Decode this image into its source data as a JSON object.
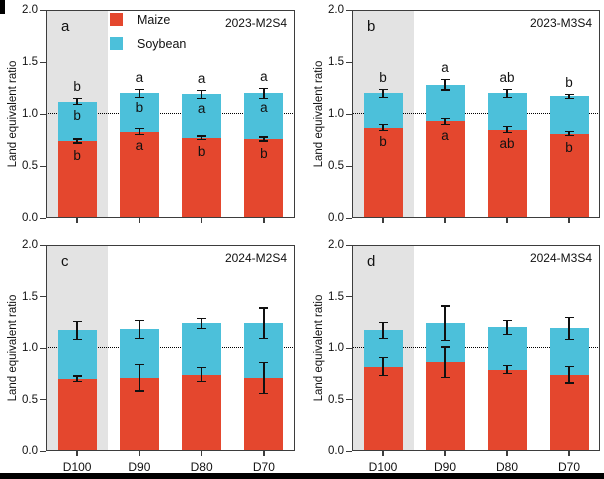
{
  "figure": {
    "ylabel": "Land equivalent ratio",
    "categories": [
      "D100",
      "D90",
      "D80",
      "D70"
    ],
    "ytick_labels": [
      "0.0",
      "0.5",
      "1.0",
      "1.5",
      "2.0"
    ],
    "legend": {
      "items": [
        {
          "label": "Maize",
          "color": "#e4472e"
        },
        {
          "label": "Soybean",
          "color": "#4cc0da"
        }
      ]
    },
    "colors": {
      "maize": "#e4472e",
      "soybean": "#4cc0da",
      "highlight_band": "#e3e3e3",
      "frame": "#3d3d3d",
      "error_bar": "#111111",
      "reference_line": "#000000",
      "text": "#111111"
    }
  },
  "chart_data": [
    {
      "type": "bar",
      "stacked": true,
      "panel_letter": "a",
      "title": "2023-M2S4",
      "categories": [
        "D100",
        "D90",
        "D80",
        "D70"
      ],
      "series": [
        {
          "name": "Maize",
          "values": [
            0.74,
            0.83,
            0.77,
            0.76
          ]
        },
        {
          "name": "Soybean",
          "values": [
            0.38,
            0.37,
            0.42,
            0.44
          ]
        }
      ],
      "totals": [
        1.12,
        1.2,
        1.19,
        1.2
      ],
      "total_err": [
        0.03,
        0.04,
        0.04,
        0.05
      ],
      "maize_err": [
        0.02,
        0.03,
        0.02,
        0.02
      ],
      "letters_above": [
        "b",
        "a",
        "a",
        "a"
      ],
      "letters_soybean": [
        "b",
        "b",
        "a",
        "a"
      ],
      "letters_maize": [
        "b",
        "a",
        "b",
        "b"
      ],
      "ylabel": "Land equivalent ratio",
      "ylim": [
        0.0,
        2.0
      ],
      "yticks": [
        0.0,
        0.5,
        1.0,
        1.5,
        2.0
      ],
      "reference_line": 1.0,
      "highlight_band_category": "D100",
      "show_legend": true,
      "show_x_labels": false
    },
    {
      "type": "bar",
      "stacked": true,
      "panel_letter": "b",
      "title": "2023-M3S4",
      "categories": [
        "D100",
        "D90",
        "D80",
        "D70"
      ],
      "series": [
        {
          "name": "Maize",
          "values": [
            0.87,
            0.93,
            0.85,
            0.81
          ]
        },
        {
          "name": "Soybean",
          "values": [
            0.33,
            0.35,
            0.35,
            0.36
          ]
        }
      ],
      "totals": [
        1.2,
        1.28,
        1.2,
        1.17
      ],
      "total_err": [
        0.04,
        0.05,
        0.04,
        0.02
      ],
      "maize_err": [
        0.03,
        0.03,
        0.03,
        0.02
      ],
      "letters_above": [
        "b",
        "a",
        "ab",
        "b"
      ],
      "letters_soybean": [
        "",
        "",
        "",
        ""
      ],
      "letters_maize": [
        "b",
        "a",
        "ab",
        "b"
      ],
      "ylabel": "Land equivalent ratio",
      "ylim": [
        0.0,
        2.0
      ],
      "yticks": [
        0.0,
        0.5,
        1.0,
        1.5,
        2.0
      ],
      "reference_line": 1.0,
      "highlight_band_category": "D100",
      "show_legend": false,
      "show_x_labels": false
    },
    {
      "type": "bar",
      "stacked": true,
      "panel_letter": "c",
      "title": "2024-M2S4",
      "categories": [
        "D100",
        "D90",
        "D80",
        "D70"
      ],
      "series": [
        {
          "name": "Maize",
          "values": [
            0.7,
            0.71,
            0.74,
            0.71
          ]
        },
        {
          "name": "Soybean",
          "values": [
            0.47,
            0.47,
            0.5,
            0.53
          ]
        }
      ],
      "totals": [
        1.17,
        1.18,
        1.24,
        1.24
      ],
      "total_err": [
        0.09,
        0.09,
        0.05,
        0.15
      ],
      "maize_err": [
        0.03,
        0.13,
        0.07,
        0.15
      ],
      "letters_above": [
        "",
        "",
        "",
        ""
      ],
      "letters_soybean": [
        "",
        "",
        "",
        ""
      ],
      "letters_maize": [
        "",
        "",
        "",
        ""
      ],
      "ylabel": "Land equivalent ratio",
      "ylim": [
        0.0,
        2.0
      ],
      "yticks": [
        0.0,
        0.5,
        1.0,
        1.5,
        2.0
      ],
      "reference_line": 1.0,
      "highlight_band_category": "D100",
      "show_legend": false,
      "show_x_labels": true
    },
    {
      "type": "bar",
      "stacked": true,
      "panel_letter": "d",
      "title": "2024-M3S4",
      "categories": [
        "D100",
        "D90",
        "D80",
        "D70"
      ],
      "series": [
        {
          "name": "Maize",
          "values": [
            0.82,
            0.86,
            0.79,
            0.74
          ]
        },
        {
          "name": "Soybean",
          "values": [
            0.35,
            0.38,
            0.41,
            0.45
          ]
        }
      ],
      "totals": [
        1.17,
        1.24,
        1.2,
        1.19
      ],
      "total_err": [
        0.08,
        0.17,
        0.07,
        0.11
      ],
      "maize_err": [
        0.09,
        0.15,
        0.04,
        0.08
      ],
      "letters_above": [
        "",
        "",
        "",
        ""
      ],
      "letters_soybean": [
        "",
        "",
        "",
        ""
      ],
      "letters_maize": [
        "",
        "",
        "",
        ""
      ],
      "ylabel": "Land equivalent ratio",
      "ylim": [
        0.0,
        2.0
      ],
      "yticks": [
        0.0,
        0.5,
        1.0,
        1.5,
        2.0
      ],
      "reference_line": 1.0,
      "highlight_band_category": "D100",
      "show_legend": false,
      "show_x_labels": true
    }
  ]
}
